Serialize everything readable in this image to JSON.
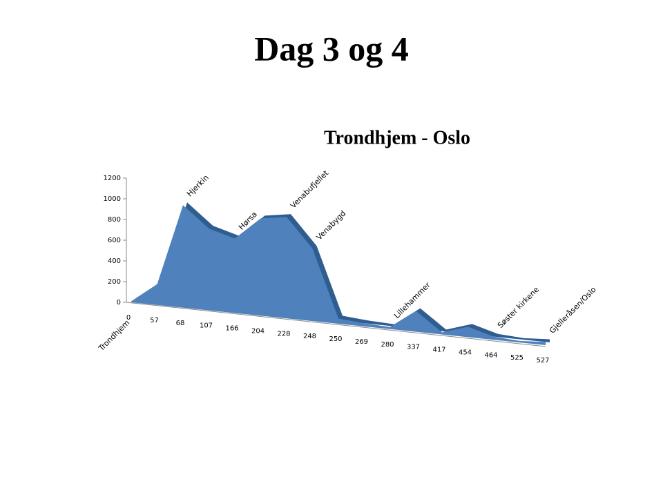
{
  "slide_title": "Dag 3 og 4",
  "chart_data": {
    "type": "area",
    "title": "Trondhjem - Oslo",
    "categories": [
      "0",
      "57",
      "68",
      "107",
      "166",
      "204",
      "228",
      "248",
      "250",
      "269",
      "280",
      "337",
      "417",
      "454",
      "464",
      "525",
      "527"
    ],
    "values": [
      10,
      200,
      990,
      790,
      720,
      940,
      980,
      700,
      50,
      30,
      20,
      200,
      20,
      100,
      30,
      15,
      30
    ],
    "point_labels": [
      "Trondhjem",
      null,
      "Hjerkin",
      null,
      "Hørsa",
      null,
      "Venabufjellet",
      "Venabygd",
      null,
      null,
      "Lillehammer",
      null,
      null,
      null,
      "Søster kirkene",
      null,
      "Gjelleråsen/Oslo"
    ],
    "color": "#4f81bd",
    "ylim": [
      0,
      1200
    ],
    "yticks": [
      0,
      200,
      400,
      600,
      800,
      1000,
      1200
    ]
  }
}
